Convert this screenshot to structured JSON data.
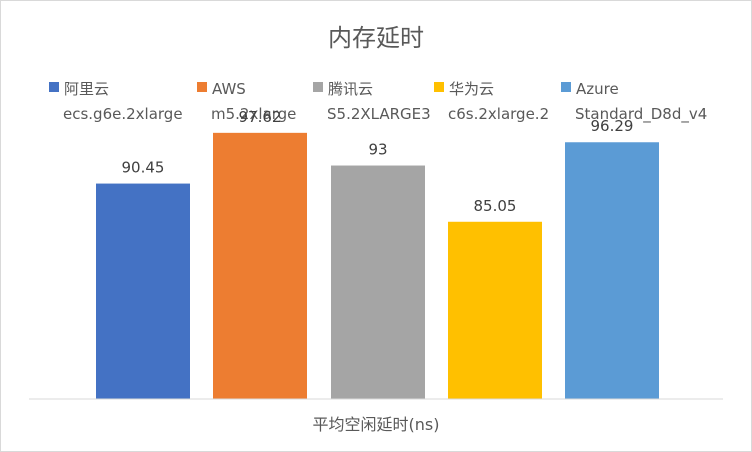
{
  "chart_data": {
    "type": "bar",
    "title": "内存延时",
    "xlabel": "平均空闲延时(ns)",
    "ylabel": "",
    "ylim": [
      60,
      100
    ],
    "grid": false,
    "legend_position": "top",
    "series": [
      {
        "name": "阿里云 ecs.g6e.2xlarge",
        "name_lines": [
          "阿里云",
          "ecs.g6e.2xlarge"
        ],
        "value": 90.45,
        "label": "90.45",
        "color": "#4472C4"
      },
      {
        "name": "AWS m5.2xlarge",
        "name_lines": [
          "AWS",
          "m5.2xlarge"
        ],
        "value": 97.62,
        "label": "97.62",
        "color": "#ED7D31"
      },
      {
        "name": "腾讯云 S5.2XLARGE3",
        "name_lines": [
          "腾讯云",
          "S5.2XLARGE3"
        ],
        "value": 93,
        "label": "93",
        "color": "#A5A5A5"
      },
      {
        "name": "华为云 c6s.2xlarge.2",
        "name_lines": [
          "华为云",
          "c6s.2xlarge.2"
        ],
        "value": 85.05,
        "label": "85.05",
        "color": "#FFC000"
      },
      {
        "name": "Azure Standard_D8d_v4",
        "name_lines": [
          "Azure",
          "Standard_D8d_v4"
        ],
        "value": 96.29,
        "label": "96.29",
        "color": "#5B9BD5"
      }
    ]
  }
}
